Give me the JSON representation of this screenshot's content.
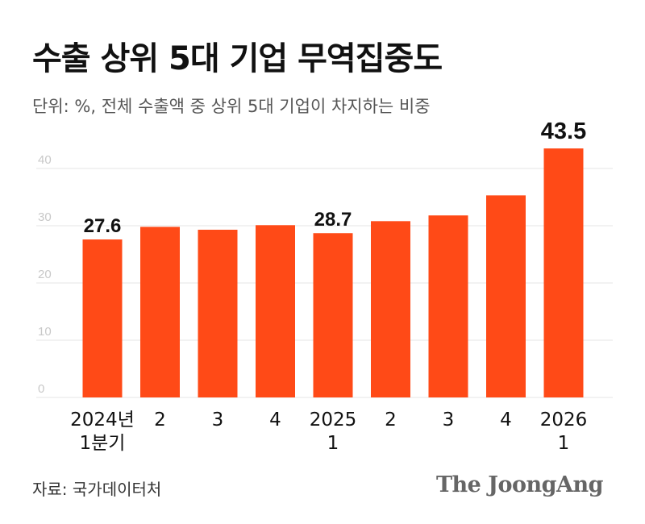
{
  "header": {
    "title": "수출 상위 5대 기업 무역집중도",
    "subtitle": "단위: %, 전체 수출액 중 상위 5대 기업이 차지하는 비중"
  },
  "footer": {
    "source": "자료: 국가데이터처",
    "brand": "The JoongAng"
  },
  "colors": {
    "bar": "#FF4A17",
    "grid": "#E5E5E5",
    "tick": "#C8C8C8"
  },
  "chart_data": {
    "type": "bar",
    "title": "수출 상위 5대 기업 무역집중도",
    "ylabel": "",
    "ylim": [
      0,
      45
    ],
    "yticks": [
      0,
      10,
      20,
      30,
      40
    ],
    "grid": true,
    "categories": [
      [
        "2024년",
        "1분기"
      ],
      [
        "2"
      ],
      [
        "3"
      ],
      [
        "4"
      ],
      [
        "2025",
        "1"
      ],
      [
        "2"
      ],
      [
        "3"
      ],
      [
        "4"
      ],
      [
        "2026",
        "1"
      ]
    ],
    "values": [
      27.6,
      29.8,
      29.3,
      30.1,
      28.7,
      30.8,
      31.8,
      35.3,
      43.5
    ],
    "data_labels": [
      "27.6",
      "",
      "",
      "",
      "28.7",
      "",
      "",
      "",
      "43.5"
    ]
  }
}
